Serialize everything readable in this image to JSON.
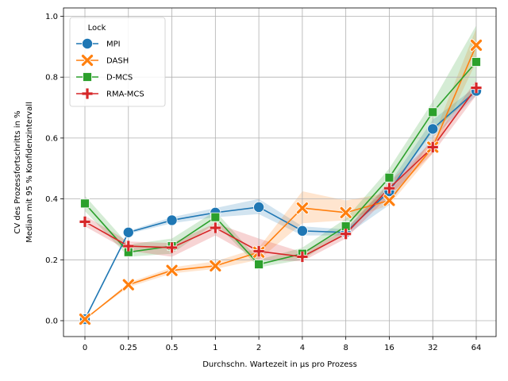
{
  "chart_data": {
    "type": "line",
    "title": "",
    "xlabel": "Durchschn. Wartezeit in µs pro Prozess",
    "ylabel_lines": [
      "CV des Prozessfortschritts in %",
      "Median mit 95 % Konfidenzintervall"
    ],
    "categories": [
      "0",
      "0.25",
      "0.5",
      "1",
      "2",
      "4",
      "8",
      "16",
      "32",
      "64"
    ],
    "yticks": [
      "0.0",
      "0.2",
      "0.4",
      "0.6",
      "0.8",
      "1.0"
    ],
    "ylim": [
      -0.04,
      1.005
    ],
    "grid": true,
    "legend": {
      "title": "Lock",
      "placement": "top-left"
    },
    "series": [
      {
        "name": "MPI",
        "color": "#1f77b4",
        "marker": "circle",
        "values": [
          0.005,
          0.29,
          0.33,
          0.355,
          0.373,
          0.295,
          0.29,
          0.425,
          0.63,
          0.755
        ],
        "lower": [
          0.005,
          0.285,
          0.32,
          0.34,
          0.35,
          0.28,
          0.28,
          0.38,
          0.6,
          0.74
        ],
        "upper": [
          0.005,
          0.295,
          0.34,
          0.37,
          0.4,
          0.31,
          0.3,
          0.45,
          0.66,
          0.77
        ]
      },
      {
        "name": "DASH",
        "color": "#ff7f0e",
        "marker": "x",
        "values": [
          0.005,
          0.118,
          0.165,
          0.18,
          0.225,
          0.37,
          0.355,
          0.395,
          0.57,
          0.905
        ],
        "lower": [
          0.005,
          0.11,
          0.155,
          0.17,
          0.2,
          0.32,
          0.33,
          0.38,
          0.55,
          0.85
        ],
        "upper": [
          0.005,
          0.125,
          0.175,
          0.195,
          0.24,
          0.425,
          0.395,
          0.42,
          0.6,
          0.96
        ]
      },
      {
        "name": "D-MCS",
        "color": "#2ca02c",
        "marker": "square",
        "values": [
          0.385,
          0.225,
          0.245,
          0.34,
          0.185,
          0.22,
          0.31,
          0.47,
          0.685,
          0.85
        ],
        "lower": [
          0.36,
          0.21,
          0.22,
          0.32,
          0.175,
          0.2,
          0.29,
          0.43,
          0.62,
          0.75
        ],
        "upper": [
          0.41,
          0.25,
          0.27,
          0.36,
          0.2,
          0.24,
          0.335,
          0.5,
          0.72,
          0.97
        ]
      },
      {
        "name": "RMA-MCS",
        "color": "#d62728",
        "marker": "plus",
        "values": [
          0.325,
          0.245,
          0.24,
          0.305,
          0.228,
          0.21,
          0.285,
          0.435,
          0.57,
          0.765
        ],
        "lower": [
          0.31,
          0.23,
          0.21,
          0.28,
          0.2,
          0.195,
          0.27,
          0.41,
          0.55,
          0.74
        ],
        "upper": [
          0.345,
          0.26,
          0.255,
          0.32,
          0.27,
          0.225,
          0.3,
          0.455,
          0.59,
          0.79
        ]
      }
    ]
  }
}
